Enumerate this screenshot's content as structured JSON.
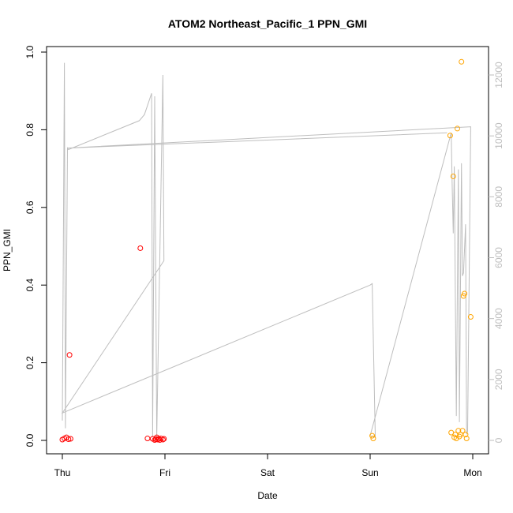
{
  "chart_data": {
    "type": "scatter",
    "title": "ATOM2 Northeast_Pacific_1 PPN_GMI",
    "xlabel": "Date",
    "ylabel": "PPN_GMI",
    "x_ticks": [
      "Thu",
      "Fri",
      "Sat",
      "Sun",
      "Mon"
    ],
    "x_range_days": [
      -0.2,
      4.1
    ],
    "ylim": [
      0,
      1.0
    ],
    "y_ticks": [
      "0.0",
      "0.2",
      "0.4",
      "0.6",
      "0.8",
      "1.0"
    ],
    "y2lim": [
      0,
      12000
    ],
    "y2_ticks": [
      "0",
      "2000",
      "4000",
      "6000",
      "8000",
      "10000",
      "12000"
    ],
    "grid": false,
    "colors": {
      "series_red": "#ff0000",
      "series_orange": "#ffa500",
      "line": "#bebebe"
    },
    "series": [
      {
        "color": "red",
        "points": [
          [
            0.0,
            0.002
          ],
          [
            0.02,
            0.005
          ],
          [
            0.04,
            0.008
          ],
          [
            0.06,
            0.003
          ],
          [
            0.07,
            0.22
          ],
          [
            0.08,
            0.004
          ],
          [
            0.76,
            0.495
          ],
          [
            0.83,
            0.005
          ],
          [
            0.88,
            0.004
          ],
          [
            0.9,
            0.001
          ],
          [
            0.91,
            0.003
          ],
          [
            0.92,
            0.008
          ],
          [
            0.93,
            0.002
          ],
          [
            0.94,
            0.004
          ],
          [
            0.95,
            0.001
          ],
          [
            0.96,
            0.005
          ],
          [
            0.98,
            0.002
          ],
          [
            0.99,
            0.004
          ]
        ]
      },
      {
        "color": "orange",
        "points": [
          [
            3.02,
            0.012
          ],
          [
            3.03,
            0.005
          ],
          [
            3.78,
            0.785
          ],
          [
            3.79,
            0.02
          ],
          [
            3.81,
            0.68
          ],
          [
            3.82,
            0.008
          ],
          [
            3.83,
            0.015
          ],
          [
            3.84,
            0.005
          ],
          [
            3.85,
            0.803
          ],
          [
            3.86,
            0.025
          ],
          [
            3.87,
            0.01
          ],
          [
            3.88,
            0.015
          ],
          [
            3.89,
            0.975
          ],
          [
            3.9,
            0.025
          ],
          [
            3.91,
            0.372
          ],
          [
            3.92,
            0.378
          ],
          [
            3.93,
            0.015
          ],
          [
            3.94,
            0.005
          ],
          [
            3.98,
            0.318
          ]
        ]
      }
    ],
    "line_series": {
      "axis": "right",
      "points": [
        [
          0.0,
          650
        ],
        [
          0.02,
          12400
        ],
        [
          0.03,
          400
        ],
        [
          0.05,
          9600
        ],
        [
          0.06,
          9550
        ],
        [
          0.75,
          10500
        ],
        [
          0.8,
          10700
        ],
        [
          0.87,
          11400
        ],
        [
          0.88,
          100
        ],
        [
          0.9,
          11300
        ],
        [
          0.92,
          100
        ],
        [
          0.98,
          12000
        ],
        [
          0.99,
          5900
        ],
        [
          0.0,
          900
        ],
        [
          3.0,
          5100
        ],
        [
          3.02,
          5150
        ],
        [
          3.05,
          100
        ],
        [
          3.0,
          150
        ],
        [
          3.79,
          10100
        ],
        [
          3.8,
          8300
        ],
        [
          3.81,
          6800
        ],
        [
          3.82,
          9000
        ],
        [
          3.84,
          800
        ],
        [
          3.86,
          8900
        ],
        [
          3.87,
          600
        ],
        [
          3.89,
          9100
        ],
        [
          3.9,
          5400
        ],
        [
          3.91,
          5500
        ],
        [
          3.93,
          7100
        ],
        [
          3.94,
          200
        ],
        [
          3.95,
          300
        ],
        [
          3.98,
          10300
        ],
        [
          0.05,
          9600
        ],
        [
          3.75,
          10100
        ]
      ]
    }
  }
}
